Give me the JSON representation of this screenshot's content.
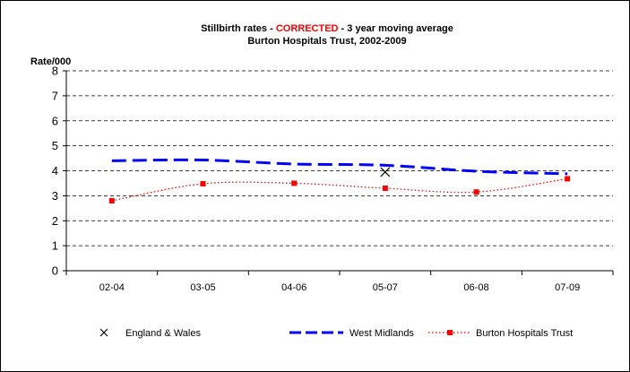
{
  "chart_data": {
    "type": "line",
    "title": {
      "line1_part1": "Stillbirth rates - ",
      "line1_highlight": "CORRECTED",
      "line1_part2": " - 3 year moving average",
      "line2": "Burton Hospitals Trust, 2002-2009"
    },
    "ylabel": "Rate/000",
    "xlabel": "",
    "ylim": [
      0,
      8
    ],
    "yticks": [
      "0",
      "1",
      "2",
      "3",
      "4",
      "5",
      "6",
      "7",
      "8"
    ],
    "categories": [
      "02-04",
      "03-05",
      "04-06",
      "05-07",
      "06-08",
      "07-09"
    ],
    "grid": true,
    "legend_position": "bottom",
    "series": [
      {
        "name": "England & Wales",
        "style": "marker-x",
        "color": "#000000",
        "values": [
          null,
          null,
          null,
          3.95,
          null,
          null
        ]
      },
      {
        "name": "West Midlands",
        "style": "dashed",
        "color": "#0000ff",
        "values": [
          4.4,
          4.43,
          4.27,
          4.22,
          3.98,
          3.88
        ]
      },
      {
        "name": "Burton Hospitals Trust",
        "style": "dotted-square",
        "color": "#ff0000",
        "values": [
          2.8,
          3.48,
          3.5,
          3.3,
          3.15,
          3.68
        ]
      }
    ]
  }
}
